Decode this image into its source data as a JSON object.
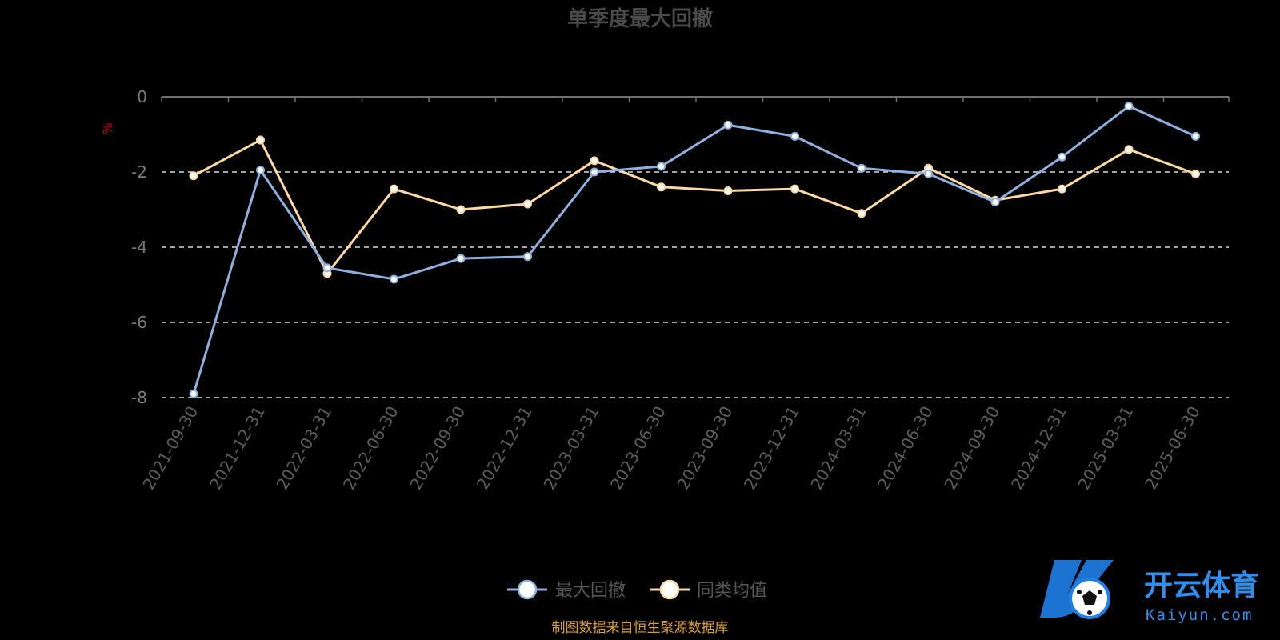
{
  "chart_data": {
    "type": "line",
    "title": "单季度最大回撤",
    "ylabel": "%",
    "xlabel": "",
    "ylim": [
      -8,
      0
    ],
    "yticks": [
      0,
      -2,
      -4,
      -6,
      -8
    ],
    "grid": "horizontal-dashed",
    "legend_position": "bottom-center",
    "categories": [
      "2021-09-30",
      "2021-12-31",
      "2022-03-31",
      "2022-06-30",
      "2022-09-30",
      "2022-12-31",
      "2023-03-31",
      "2023-06-30",
      "2023-09-30",
      "2023-12-31",
      "2024-03-31",
      "2024-06-30",
      "2024-09-30",
      "2024-12-31",
      "2025-03-31",
      "2025-06-30"
    ],
    "series": [
      {
        "name": "最大回撤",
        "color": "#8eb0df",
        "values": [
          -7.9,
          -1.95,
          -4.55,
          -4.85,
          -4.3,
          -4.25,
          -2.0,
          -1.85,
          -0.75,
          -1.05,
          -1.9,
          -2.05,
          -2.8,
          -1.6,
          -0.25,
          -1.05
        ]
      },
      {
        "name": "同类均值",
        "color": "#fbd9a0",
        "values": [
          -2.1,
          -1.15,
          -4.7,
          -2.45,
          -3.0,
          -2.85,
          -1.7,
          -2.4,
          -2.5,
          -2.45,
          -3.1,
          -1.9,
          -2.75,
          -2.45,
          -1.4,
          -2.05
        ]
      }
    ]
  },
  "footer": {
    "source": "制图数据来自恒生聚源数据库"
  },
  "watermark": {
    "brand_cn": "开云体育",
    "brand_en": "Kaiyun.com",
    "icon": "ball-icon"
  }
}
